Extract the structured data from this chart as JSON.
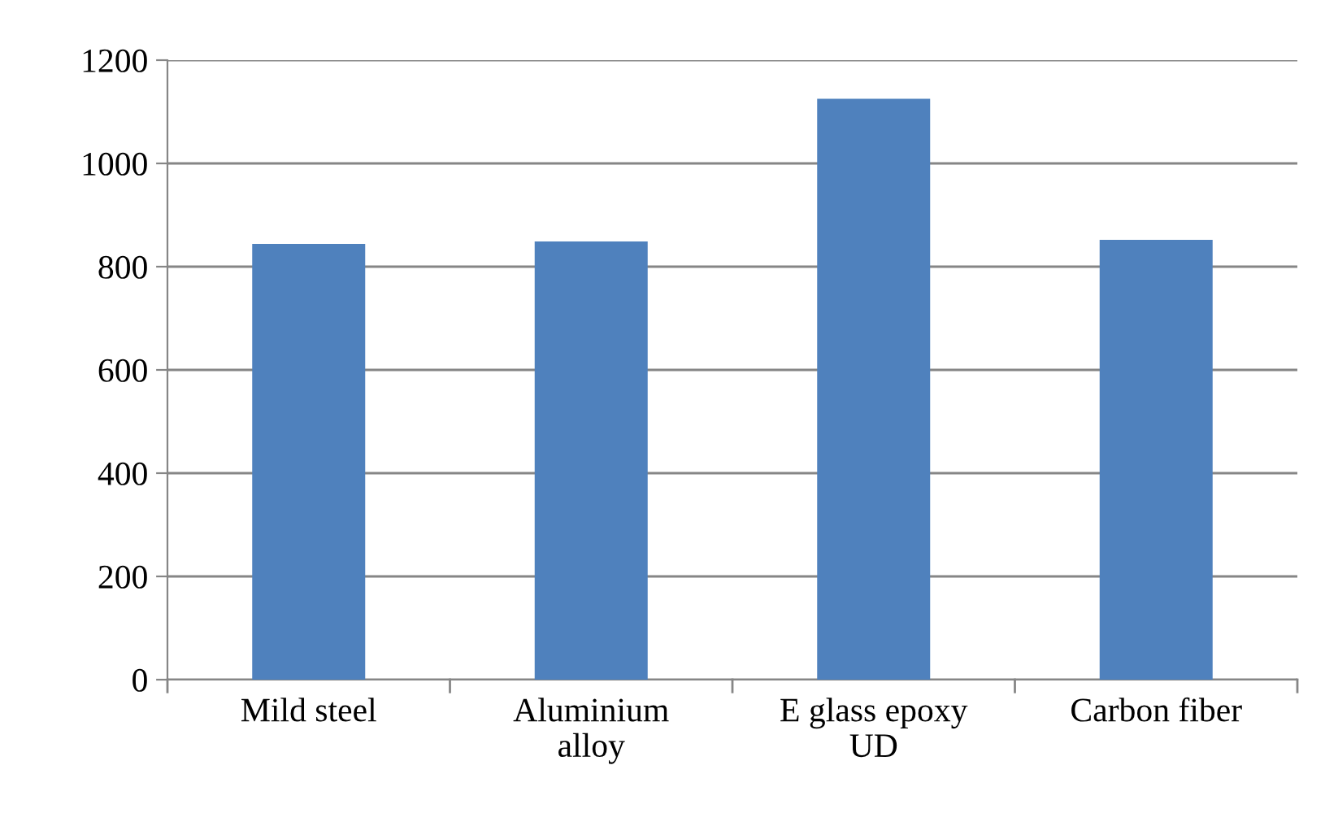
{
  "chart_data": {
    "type": "bar",
    "categories": [
      "Mild steel",
      "Aluminium\nalloy",
      "E glass epoxy\nUD",
      "Carbon fiber"
    ],
    "values": [
      844,
      849,
      1125,
      852
    ],
    "color": "#4f81bd",
    "ylim": [
      0,
      1200
    ],
    "yticks": [
      0,
      200,
      400,
      600,
      800,
      1000,
      1200
    ],
    "grid": "y",
    "legend": false
  }
}
